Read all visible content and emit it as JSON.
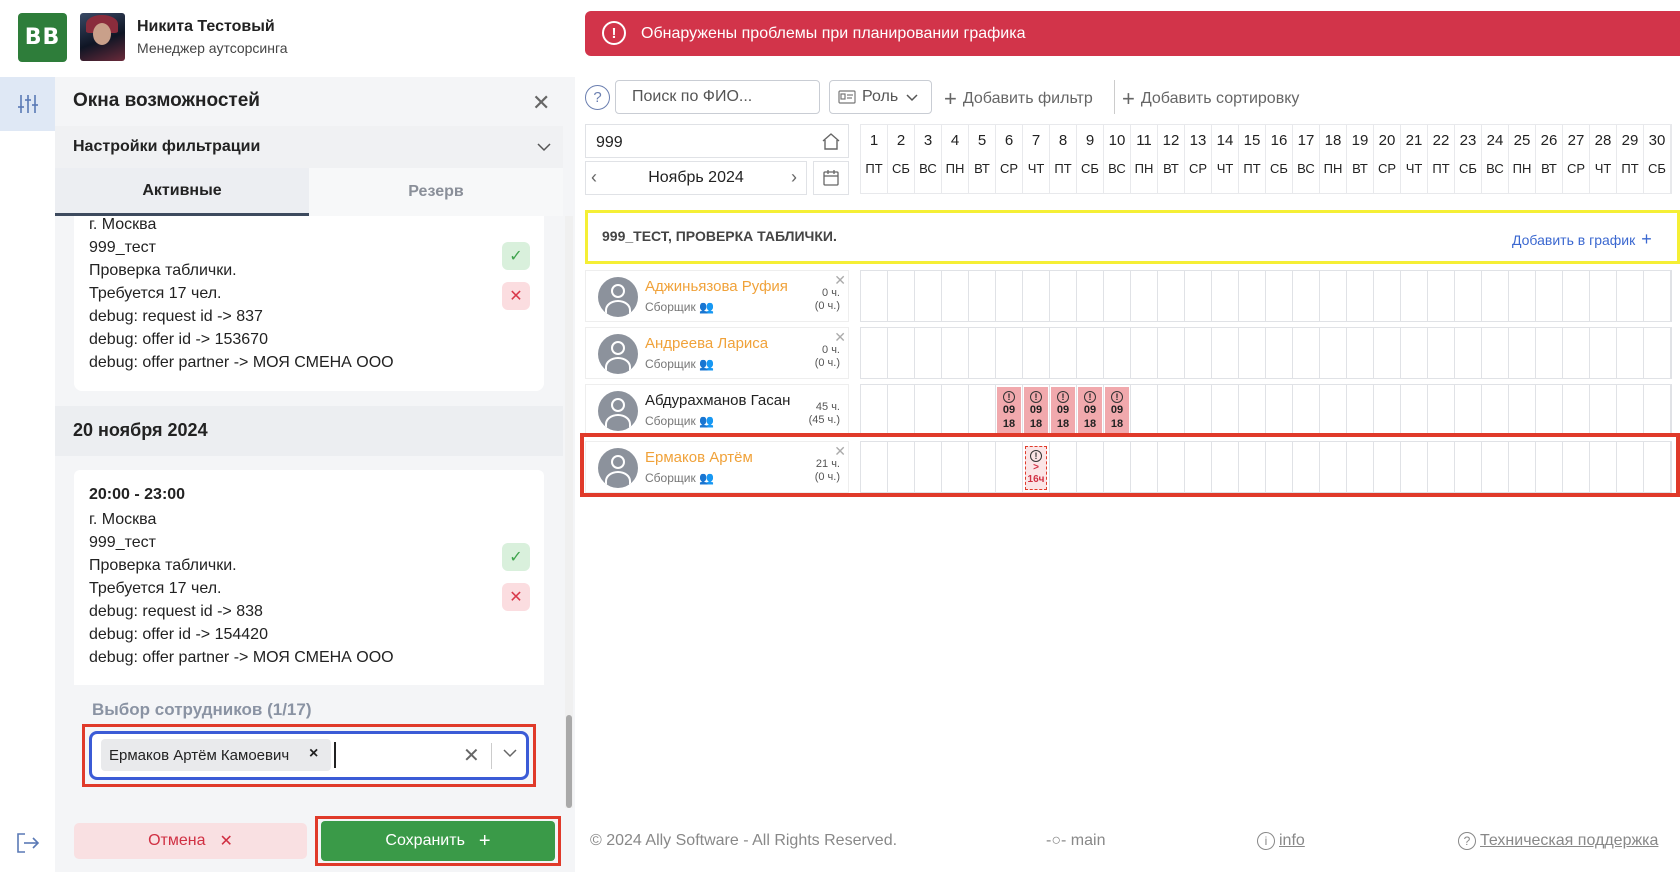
{
  "header": {
    "logo_text": "BB",
    "user_name": "Никита Тестовый",
    "user_role": "Менеджер аутсорсинга",
    "alert_text": "Обнаружены проблемы при планировании графика"
  },
  "panel": {
    "title": "Окна возможностей",
    "filter_settings": "Настройки фильтрации",
    "tabs": [
      "Активные",
      "Резерв"
    ],
    "card1": {
      "lines": [
        "г. Москва",
        "999_тест",
        "Проверка таблички.",
        "Требуется 17 чел.",
        "debug: request id -> 837",
        "debug: offer id -> 153670",
        "debug: offer partner -> МОЯ СМЕНА ООО"
      ]
    },
    "date_header": "20 ноября 2024",
    "card2": {
      "time": "20:00 - 23:00",
      "lines": [
        "г. Москва",
        "999_тест",
        "Проверка таблички.",
        "Требуется 17 чел.",
        "debug: request id -> 838",
        "debug: offer id -> 154420",
        "debug: offer partner -> МОЯ СМЕНА ООО"
      ]
    },
    "selection_label": "Выбор сотрудников (1/17)",
    "selected_chip": "Ермаков Артём Камоевич",
    "cancel_label": "Отмена",
    "save_label": "Сохранить"
  },
  "toolbar": {
    "search_placeholder": "Поиск по ФИО...",
    "role_label": "Роль",
    "add_filter": "Добавить фильтр",
    "add_sort": "Добавить сортировку",
    "code": "999",
    "month": "Ноябрь 2024"
  },
  "calendar": {
    "days": [
      "1",
      "2",
      "3",
      "4",
      "5",
      "6",
      "7",
      "8",
      "9",
      "10",
      "11",
      "12",
      "13",
      "14",
      "15",
      "16",
      "17",
      "18",
      "19",
      "20",
      "21",
      "22",
      "23",
      "24",
      "25",
      "26",
      "27",
      "28",
      "29",
      "30"
    ],
    "weekdays": [
      "ПТ",
      "СБ",
      "ВС",
      "ПН",
      "ВТ",
      "СР",
      "ЧТ",
      "ПТ",
      "СБ",
      "ВС",
      "ПН",
      "ВТ",
      "СР",
      "ЧТ",
      "ПТ",
      "СБ",
      "ВС",
      "ПН",
      "ВТ",
      "СР",
      "ЧТ",
      "ПТ",
      "СБ",
      "ВС",
      "ПН",
      "ВТ",
      "СР",
      "ЧТ",
      "ПТ",
      "СБ"
    ]
  },
  "request_banner": {
    "text": "999_ТЕСТ, ПРОВЕРКА ТАБЛИЧКИ.",
    "add_label": "Добавить в график"
  },
  "employees": [
    {
      "name": "Аджиньязова Руфия",
      "role": "Сборщик",
      "hours": "0 ч.",
      "hours_total": "(0 ч.)"
    },
    {
      "name": "Андреева Лариса",
      "role": "Сборщик",
      "hours": "0 ч.",
      "hours_total": "(0 ч.)"
    },
    {
      "name": "Абдурахманов Гасан",
      "role": "Сборщик",
      "hours": "45 ч.",
      "hours_total": "(45 ч.)"
    },
    {
      "name": "Ермаков Артём",
      "role": "Сборщик",
      "hours": "21 ч.",
      "hours_total": "(0 ч.)"
    }
  ],
  "shifts": {
    "start": "09",
    "end": "18",
    "warning": "!",
    "new_shift_line1": ">",
    "new_shift_line2": "16ч"
  },
  "footer": {
    "copyright": "© 2024 Ally Software - All Rights Reserved.",
    "branch": "main",
    "info": "info",
    "support": "Техническая поддержка"
  }
}
